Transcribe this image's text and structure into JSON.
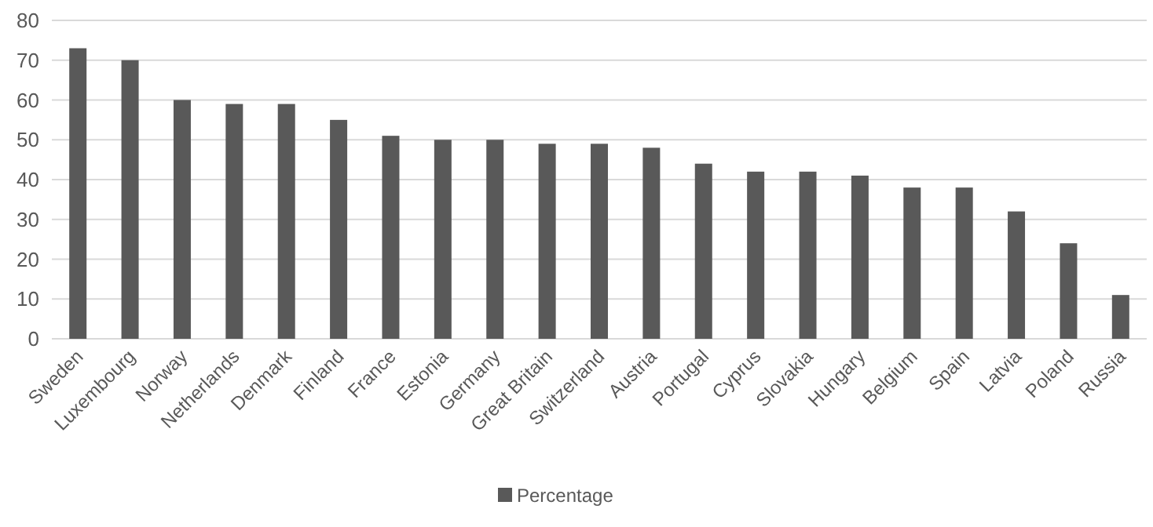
{
  "chart_data": {
    "type": "bar",
    "categories": [
      "Sweden",
      "Luxembourg",
      "Norway",
      "Netherlands",
      "Denmark",
      "Finland",
      "France",
      "Estonia",
      "Germany",
      "Great Britain",
      "Switzerland",
      "Austria",
      "Portugal",
      "Cyprus",
      "Slovakia",
      "Hungary",
      "Belgium",
      "Spain",
      "Latvia",
      "Poland",
      "Russia"
    ],
    "series": [
      {
        "name": "Percentage",
        "color": "#595959",
        "values": [
          73,
          70,
          60,
          59,
          59,
          55,
          51,
          50,
          50,
          49,
          49,
          48,
          44,
          42,
          42,
          41,
          38,
          38,
          32,
          24,
          11
        ]
      }
    ],
    "ylim": [
      0,
      80
    ],
    "yticks": [
      0,
      10,
      20,
      30,
      40,
      50,
      60,
      70,
      80
    ],
    "grid": "y",
    "legend": "bottom"
  }
}
